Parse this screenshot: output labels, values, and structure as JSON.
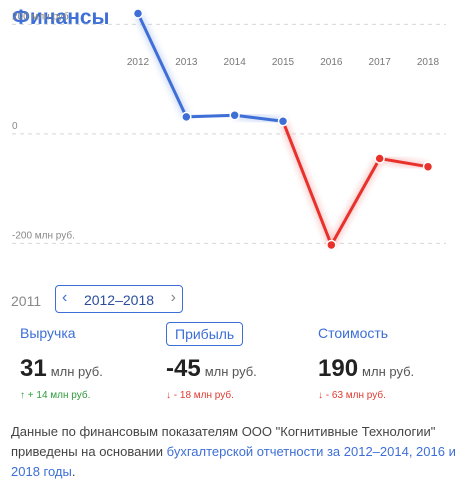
{
  "title": "Финансы",
  "chart_data": {
    "type": "line",
    "x": [
      2012,
      2013,
      2014,
      2015,
      2016,
      2017,
      2018
    ],
    "y": [
      220,
      31,
      34,
      23,
      -203,
      -45,
      -60
    ],
    "ylim": [
      -225,
      230
    ],
    "yticks": [
      200,
      0,
      -200
    ],
    "ytick_labels": [
      "200 млн руб.",
      "0",
      "-200 млн руб."
    ],
    "xtick_labels": [
      "2012",
      "2013",
      "2014",
      "2015",
      "2016",
      "2017",
      "2018"
    ],
    "positive_color": "#3d6fd6",
    "negative_color": "#e8312a",
    "grid": true
  },
  "range": {
    "start_year": "2011",
    "label": "2012–2018",
    "prev": "‹",
    "next": "›"
  },
  "metrics": [
    {
      "label": "Выручка",
      "value": "31",
      "unit": "млн руб.",
      "change": "↑ + 14 млн руб.",
      "direction": "up",
      "active": false
    },
    {
      "label": "Прибыль",
      "value": "-45",
      "unit": "млн руб.",
      "change": "↓ - 18 млн руб.",
      "direction": "down",
      "active": true
    },
    {
      "label": "Стоимость",
      "value": "190",
      "unit": "млн руб.",
      "change": "↓ - 63 млн руб.",
      "direction": "down",
      "active": false
    }
  ],
  "note": {
    "text": "Данные по финансовым показателям ООО \"Когнитивные Технологии\" приведены на основании ",
    "link": "бухгалтерской отчетности за 2012–2014, 2016 и 2018 годы",
    "end": "."
  }
}
